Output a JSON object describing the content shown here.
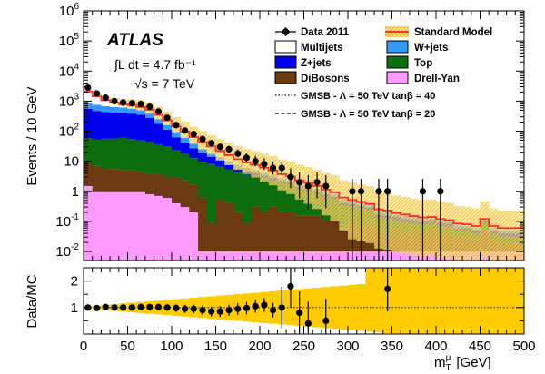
{
  "chart_data": [
    {
      "type": "bar",
      "panel": "main",
      "ylabel": "Events / 10 GeV",
      "yscale": "log",
      "ylim": [
        0.005,
        1000000
      ],
      "xlim": [
        0,
        500
      ],
      "bin_width": 10,
      "y_tick_labels": [
        "10^{-2}",
        "10^{-1}",
        "1",
        "10",
        "10^{2}",
        "10^{3}",
        "10^{4}",
        "10^{5}",
        "10^{6}"
      ],
      "experiment": "ATLAS",
      "lumi_label": "∫L dt = 4.7 fb⁻¹",
      "energy_label": "√s = 7 TeV",
      "legend": {
        "data": "Data 2011",
        "sm": "Standard Model",
        "multijets": "Multijets",
        "wjets": "W+jets",
        "zjets": "Z+jets",
        "top": "Top",
        "dibosons": "DiBosons",
        "drellyan": "Drell-Yan",
        "gmsb40": "GMSB - Λ = 50 TeV tanβ = 40",
        "gmsb20": "GMSB - Λ = 50 TeV tanβ = 20"
      },
      "stack_order": [
        "drellyan",
        "dibosons",
        "top",
        "zjets",
        "wjets",
        "multijets"
      ],
      "series": [
        {
          "name": "Drell-Yan",
          "key": "drellyan",
          "values": [
            1.5,
            1,
            1,
            1,
            1,
            1,
            1,
            0.8,
            0.7,
            0.6,
            0.4,
            0.3,
            0.2,
            0.01,
            0.01,
            0.01,
            0.01,
            0.01,
            0.01,
            0.01,
            0.01,
            0.01,
            0.01,
            0.01,
            0.01,
            0.01,
            0.01,
            0.01,
            0.01,
            0.01,
            0.01,
            0.01,
            0.01,
            0.01,
            0.01,
            0.01,
            0.01,
            0.01,
            0.01,
            0.01,
            0.01,
            0.01,
            0.01,
            0.01,
            0.01,
            0.01,
            0.01,
            0.01,
            0.01,
            0.01
          ]
        },
        {
          "name": "DiBosons",
          "key": "dibosons",
          "values": [
            8,
            6,
            5,
            4.5,
            4,
            4,
            3.5,
            3,
            3,
            2.5,
            2.5,
            2,
            1.5,
            0.6,
            0.08,
            0.5,
            0.4,
            0.2,
            0.08,
            0.3,
            0.2,
            0.3,
            0.2,
            0.2,
            0.15,
            0.15,
            0.15,
            0.1,
            0.1,
            0.05,
            0.1,
            0.06,
            0.08,
            0.04,
            0.03,
            0.05,
            0.03,
            0.04,
            0.03,
            0.05,
            0.03,
            0.03,
            0.02,
            0.02,
            0.015,
            0.04,
            0.015,
            0.01,
            0.01,
            0.01
          ]
        },
        {
          "name": "Top",
          "key": "top",
          "values": [
            50,
            45,
            50,
            52,
            55,
            50,
            45,
            40,
            33,
            28,
            20,
            15,
            11,
            9,
            8,
            6,
            5,
            4,
            3.5,
            3,
            2.5,
            2,
            1.6,
            1.4,
            1,
            0.9,
            0.7,
            0.55,
            0.45,
            0.28,
            0.2,
            0.2,
            0.15,
            0.08,
            0.08,
            0.05,
            0.05,
            0.04,
            0.04,
            0.03,
            0.03,
            0.03,
            0.02,
            0.02,
            0.015,
            0.04,
            0.015,
            0.01,
            0.01,
            0.01
          ]
        },
        {
          "name": "Z+jets",
          "key": "zjets",
          "values": [
            500,
            420,
            380,
            360,
            350,
            330,
            300,
            230,
            140,
            80,
            40,
            24,
            14,
            9,
            6,
            4,
            2,
            1.5,
            1,
            0.8,
            0.6,
            0.5,
            0.4,
            0.3,
            0.25,
            0.2,
            0.15,
            0.12,
            0.1,
            0.08,
            0.07,
            0.06,
            0.05,
            0.04,
            0.04,
            0.03,
            0.03,
            0.02,
            0.02,
            0.02,
            0.02,
            0.015,
            0.01,
            0.01,
            0.01,
            0.01,
            0.01,
            0.01,
            0.01,
            0.01
          ]
        },
        {
          "name": "W+jets",
          "key": "wjets",
          "values": [
            300,
            280,
            250,
            220,
            200,
            180,
            150,
            120,
            80,
            50,
            30,
            20,
            12,
            7,
            5,
            3.5,
            2.5,
            2,
            1.5,
            1,
            0.8,
            0.6,
            0.5,
            0.4,
            0.3,
            0.25,
            0.2,
            0.15,
            0.12,
            0.1,
            0.08,
            0.06,
            0.05,
            0.05,
            0.04,
            0.03,
            0.03,
            0.025,
            0.02,
            0.02,
            0.02,
            0.015,
            0.015,
            0.01,
            0.01,
            0.01,
            0.01,
            0.01,
            0.01,
            0.01
          ]
        },
        {
          "name": "Multijets",
          "key": "multijets",
          "values": [
            1200,
            700,
            400,
            250,
            180,
            160,
            140,
            120,
            90,
            70,
            50,
            35,
            25,
            18,
            12,
            8,
            6,
            4,
            3,
            2.5,
            2,
            1.5,
            1,
            0.8,
            0.6,
            0.4,
            0.3,
            0.2,
            0.15,
            0.1,
            0.05,
            0.05,
            0.04,
            0.03,
            0.03,
            0.02,
            0.02,
            0.015,
            0.015,
            0.01,
            0.01,
            0.01,
            0.01,
            0.01,
            0.01,
            0.01,
            0.01,
            0.01,
            0.01,
            0.01
          ]
        },
        {
          "name": "Data 2011",
          "key": "data",
          "values": [
            2800,
            1800,
            1300,
            1000,
            900,
            850,
            800,
            650,
            450,
            280,
            160,
            105,
            80,
            55,
            40,
            30,
            25,
            18,
            13,
            10,
            8,
            6,
            6,
            3,
            2,
            1.5,
            2,
            1.5,
            null,
            null,
            1,
            1,
            null,
            1,
            1,
            null,
            null,
            null,
            1,
            null,
            1,
            null,
            null,
            null,
            null,
            null,
            null,
            null,
            null,
            null
          ]
        }
      ]
    },
    {
      "type": "scatter",
      "panel": "ratio",
      "ylabel": "Data/MC",
      "xlabel": "m_T^μ",
      "xunit": "[GeV]",
      "xlim": [
        0,
        500
      ],
      "ylim": [
        0,
        2.5
      ],
      "x_tick_labels": [
        "0",
        "50",
        "100",
        "150",
        "200",
        "250",
        "300",
        "350",
        "400",
        "450",
        "500"
      ],
      "y_tick_labels": [
        "1",
        "2"
      ],
      "reference_line": 1,
      "series": [
        {
          "name": "Data 2011",
          "x": [
            5,
            15,
            25,
            35,
            45,
            55,
            65,
            75,
            85,
            95,
            105,
            115,
            125,
            135,
            145,
            155,
            165,
            175,
            185,
            195,
            205,
            215,
            225,
            235,
            245,
            255,
            275,
            345
          ],
          "y": [
            1.0,
            0.98,
            1.02,
            1.0,
            1.0,
            1.0,
            1.02,
            1.02,
            1.02,
            1.0,
            0.98,
            0.95,
            0.95,
            0.9,
            0.85,
            0.85,
            0.9,
            0.95,
            0.98,
            1.05,
            1.1,
            0.9,
            1.0,
            1.8,
            0.8,
            0.4,
            0.5,
            1.7
          ]
        }
      ]
    }
  ]
}
